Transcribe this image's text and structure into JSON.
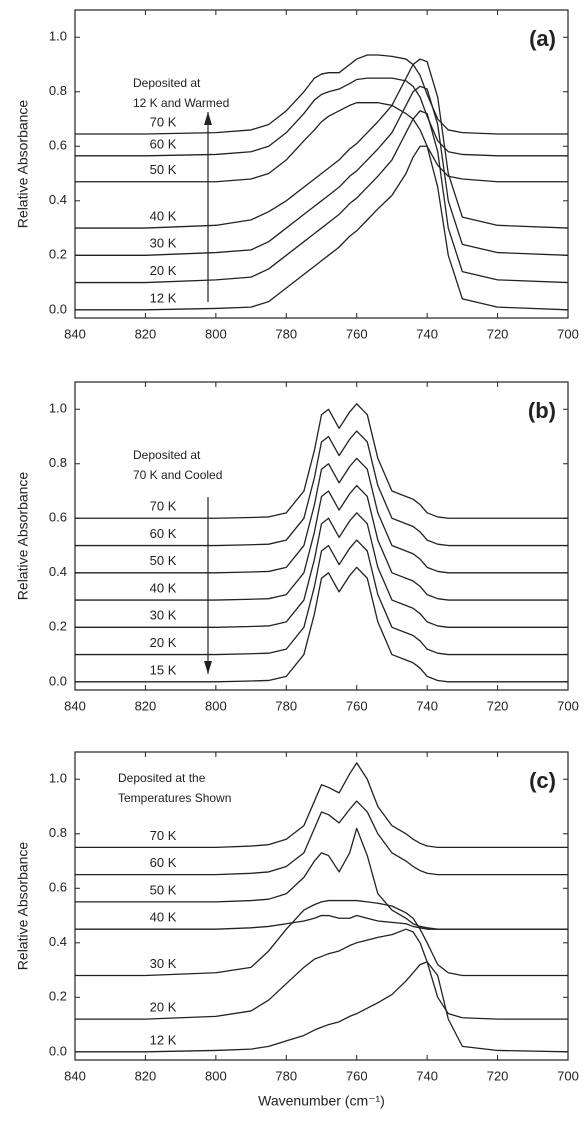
{
  "chart_data": [
    {
      "type": "line",
      "panel_label": "(a)",
      "ylabel": "Relative Absorbance",
      "annotation": [
        "Deposited  at",
        "12 K and Warmed"
      ],
      "xlim": [
        840,
        700
      ],
      "ylim": [
        -0.03,
        1.1
      ],
      "xticks": [
        840,
        820,
        800,
        780,
        760,
        740,
        720,
        700
      ],
      "yticks": [
        {
          "value": 0,
          "label": "0.0"
        },
        {
          "value": 0.2,
          "label": "0.2"
        },
        {
          "value": 0.4,
          "label": "0.4"
        },
        {
          "value": 0.6,
          "label": "0.6"
        },
        {
          "value": 0.8,
          "label": "0.8"
        },
        {
          "value": 1,
          "label": "1.0"
        }
      ],
      "x": [
        840,
        820,
        800,
        790,
        785,
        780,
        775,
        772,
        770,
        768,
        765,
        762,
        760,
        757,
        754,
        750,
        746,
        744,
        742,
        740,
        737,
        734,
        730,
        720,
        700
      ],
      "series": [
        {
          "name": "12 K",
          "color": "#222222",
          "values": [
            0,
            0,
            0.005,
            0.01,
            0.03,
            0.08,
            0.13,
            0.16,
            0.18,
            0.2,
            0.23,
            0.27,
            0.29,
            0.33,
            0.37,
            0.42,
            0.5,
            0.56,
            0.6,
            0.6,
            0.45,
            0.2,
            0.04,
            0.01,
            0
          ]
        },
        {
          "name": "20 K",
          "color": "#222222",
          "values": [
            0.1,
            0.1,
            0.11,
            0.12,
            0.15,
            0.2,
            0.25,
            0.28,
            0.3,
            0.32,
            0.35,
            0.39,
            0.41,
            0.45,
            0.49,
            0.55,
            0.65,
            0.7,
            0.73,
            0.72,
            0.58,
            0.3,
            0.14,
            0.11,
            0.1
          ]
        },
        {
          "name": "30 K",
          "color": "#222222",
          "values": [
            0.2,
            0.2,
            0.21,
            0.22,
            0.25,
            0.3,
            0.35,
            0.38,
            0.4,
            0.42,
            0.45,
            0.49,
            0.51,
            0.55,
            0.59,
            0.65,
            0.75,
            0.8,
            0.82,
            0.81,
            0.68,
            0.4,
            0.24,
            0.21,
            0.2
          ]
        },
        {
          "name": "40 K",
          "color": "#222222",
          "values": [
            0.3,
            0.3,
            0.31,
            0.33,
            0.36,
            0.4,
            0.45,
            0.48,
            0.5,
            0.52,
            0.55,
            0.59,
            0.61,
            0.65,
            0.69,
            0.75,
            0.85,
            0.9,
            0.92,
            0.91,
            0.78,
            0.5,
            0.34,
            0.31,
            0.3
          ]
        },
        {
          "name": "50 K",
          "color": "#222222",
          "values": [
            0.47,
            0.47,
            0.47,
            0.48,
            0.5,
            0.55,
            0.62,
            0.66,
            0.69,
            0.71,
            0.73,
            0.75,
            0.76,
            0.76,
            0.76,
            0.75,
            0.72,
            0.7,
            0.66,
            0.6,
            0.53,
            0.49,
            0.48,
            0.47,
            0.47
          ]
        },
        {
          "name": "60 K",
          "color": "#222222",
          "values": [
            0.565,
            0.565,
            0.57,
            0.58,
            0.6,
            0.65,
            0.72,
            0.77,
            0.79,
            0.8,
            0.81,
            0.83,
            0.845,
            0.85,
            0.85,
            0.85,
            0.84,
            0.82,
            0.78,
            0.71,
            0.62,
            0.58,
            0.57,
            0.565,
            0.565
          ]
        },
        {
          "name": "70 K",
          "color": "#222222",
          "values": [
            0.645,
            0.645,
            0.65,
            0.66,
            0.68,
            0.73,
            0.8,
            0.85,
            0.865,
            0.87,
            0.87,
            0.9,
            0.92,
            0.935,
            0.935,
            0.93,
            0.92,
            0.9,
            0.86,
            0.79,
            0.7,
            0.66,
            0.65,
            0.645,
            0.645
          ]
        }
      ]
    },
    {
      "type": "line",
      "panel_label": "(b)",
      "ylabel": "Relative Absorbance",
      "annotation": [
        "Deposited  at",
        "70 K and Cooled"
      ],
      "xlim": [
        840,
        700
      ],
      "ylim": [
        -0.03,
        1.1
      ],
      "xticks": [
        840,
        820,
        800,
        780,
        760,
        740,
        720,
        700
      ],
      "yticks": [
        {
          "value": 0,
          "label": "0.0"
        },
        {
          "value": 0.2,
          "label": "0.2"
        },
        {
          "value": 0.4,
          "label": "0.4"
        },
        {
          "value": 0.6,
          "label": "0.6"
        },
        {
          "value": 0.8,
          "label": "0.8"
        },
        {
          "value": 1,
          "label": "1.0"
        }
      ],
      "x": [
        840,
        820,
        800,
        790,
        785,
        780,
        775,
        772,
        770,
        768,
        765,
        762,
        760,
        757,
        754,
        750,
        746,
        744,
        742,
        740,
        737,
        734,
        730,
        720,
        700
      ],
      "series": [
        {
          "name": "15 K",
          "color": "#222222",
          "values": [
            0,
            0,
            0,
            0.003,
            0.005,
            0.02,
            0.1,
            0.25,
            0.38,
            0.4,
            0.33,
            0.39,
            0.42,
            0.38,
            0.22,
            0.1,
            0.08,
            0.07,
            0.05,
            0.02,
            0.005,
            0,
            0,
            0,
            0
          ]
        },
        {
          "name": "20 K",
          "color": "#222222",
          "values": [
            0.1,
            0.1,
            0.1,
            0.103,
            0.105,
            0.12,
            0.2,
            0.35,
            0.48,
            0.5,
            0.43,
            0.49,
            0.52,
            0.48,
            0.32,
            0.2,
            0.18,
            0.17,
            0.15,
            0.12,
            0.105,
            0.1,
            0.1,
            0.1,
            0.1
          ]
        },
        {
          "name": "30 K",
          "color": "#222222",
          "values": [
            0.2,
            0.2,
            0.2,
            0.203,
            0.205,
            0.22,
            0.3,
            0.45,
            0.58,
            0.6,
            0.53,
            0.59,
            0.62,
            0.58,
            0.42,
            0.3,
            0.28,
            0.27,
            0.25,
            0.22,
            0.205,
            0.2,
            0.2,
            0.2,
            0.2
          ]
        },
        {
          "name": "40 K",
          "color": "#222222",
          "values": [
            0.3,
            0.3,
            0.3,
            0.303,
            0.305,
            0.32,
            0.4,
            0.55,
            0.68,
            0.7,
            0.63,
            0.69,
            0.72,
            0.68,
            0.52,
            0.4,
            0.38,
            0.37,
            0.35,
            0.32,
            0.305,
            0.3,
            0.3,
            0.3,
            0.3
          ]
        },
        {
          "name": "50 K",
          "color": "#222222",
          "values": [
            0.4,
            0.4,
            0.4,
            0.403,
            0.405,
            0.42,
            0.5,
            0.65,
            0.78,
            0.8,
            0.73,
            0.79,
            0.82,
            0.78,
            0.62,
            0.5,
            0.48,
            0.47,
            0.45,
            0.42,
            0.405,
            0.4,
            0.4,
            0.4,
            0.4
          ]
        },
        {
          "name": "60 K",
          "color": "#222222",
          "values": [
            0.5,
            0.5,
            0.5,
            0.503,
            0.505,
            0.52,
            0.6,
            0.75,
            0.88,
            0.9,
            0.83,
            0.89,
            0.92,
            0.88,
            0.72,
            0.6,
            0.58,
            0.57,
            0.55,
            0.52,
            0.505,
            0.5,
            0.5,
            0.5,
            0.5
          ]
        },
        {
          "name": "70 K",
          "color": "#222222",
          "values": [
            0.6,
            0.6,
            0.6,
            0.603,
            0.605,
            0.62,
            0.7,
            0.85,
            0.98,
            1,
            0.93,
            0.99,
            1.02,
            0.98,
            0.82,
            0.7,
            0.68,
            0.67,
            0.65,
            0.62,
            0.605,
            0.6,
            0.6,
            0.6,
            0.6
          ]
        }
      ]
    },
    {
      "type": "line",
      "panel_label": "(c)",
      "ylabel": "Relative Absorbance",
      "xlabel": "Wavenumber (cm⁻¹)",
      "annotation": [
        "Deposited at the",
        "Temperatures Shown"
      ],
      "xlim": [
        840,
        700
      ],
      "ylim": [
        -0.03,
        1.1
      ],
      "xticks": [
        840,
        820,
        800,
        780,
        760,
        740,
        720,
        700
      ],
      "yticks": [
        {
          "value": 0,
          "label": "0.0"
        },
        {
          "value": 0.2,
          "label": "0.2"
        },
        {
          "value": 0.4,
          "label": "0.4"
        },
        {
          "value": 0.6,
          "label": "0.6"
        },
        {
          "value": 0.8,
          "label": "0.8"
        },
        {
          "value": 1,
          "label": "1.0"
        }
      ],
      "x": [
        840,
        820,
        800,
        790,
        785,
        780,
        775,
        772,
        770,
        768,
        765,
        762,
        760,
        757,
        754,
        750,
        746,
        744,
        742,
        740,
        737,
        734,
        730,
        720,
        700
      ],
      "series": [
        {
          "name": "12 K",
          "color": "#222222",
          "values": [
            0,
            0,
            0.005,
            0.01,
            0.02,
            0.04,
            0.06,
            0.08,
            0.09,
            0.1,
            0.11,
            0.13,
            0.14,
            0.16,
            0.18,
            0.21,
            0.26,
            0.29,
            0.32,
            0.33,
            0.28,
            0.12,
            0.02,
            0.005,
            0
          ]
        },
        {
          "name": "20 K",
          "color": "#222222",
          "values": [
            0.12,
            0.12,
            0.13,
            0.15,
            0.19,
            0.25,
            0.31,
            0.34,
            0.35,
            0.36,
            0.37,
            0.39,
            0.4,
            0.41,
            0.42,
            0.43,
            0.45,
            0.44,
            0.4,
            0.33,
            0.2,
            0.14,
            0.125,
            0.12,
            0.12
          ]
        },
        {
          "name": "30 K",
          "color": "#222222",
          "values": [
            0.28,
            0.28,
            0.29,
            0.31,
            0.37,
            0.45,
            0.52,
            0.54,
            0.55,
            0.555,
            0.555,
            0.555,
            0.555,
            0.55,
            0.545,
            0.535,
            0.51,
            0.49,
            0.45,
            0.4,
            0.32,
            0.29,
            0.28,
            0.28,
            0.28
          ]
        },
        {
          "name": "40 K",
          "color": "#222222",
          "values": [
            0.45,
            0.45,
            0.45,
            0.455,
            0.46,
            0.47,
            0.48,
            0.49,
            0.5,
            0.5,
            0.49,
            0.49,
            0.5,
            0.49,
            0.48,
            0.475,
            0.47,
            0.46,
            0.455,
            0.45,
            0.45,
            0.45,
            0.45,
            0.45,
            0.45
          ]
        },
        {
          "name": "50 K",
          "color": "#222222",
          "values": [
            0.55,
            0.55,
            0.55,
            0.555,
            0.56,
            0.58,
            0.64,
            0.7,
            0.73,
            0.72,
            0.66,
            0.73,
            0.82,
            0.72,
            0.58,
            0.52,
            0.49,
            0.47,
            0.46,
            0.455,
            0.45,
            0.45,
            0.45,
            0.45,
            0.45
          ]
        },
        {
          "name": "60 K",
          "color": "#222222",
          "values": [
            0.65,
            0.65,
            0.65,
            0.655,
            0.66,
            0.68,
            0.73,
            0.82,
            0.88,
            0.87,
            0.84,
            0.89,
            0.92,
            0.88,
            0.8,
            0.73,
            0.7,
            0.68,
            0.665,
            0.655,
            0.65,
            0.65,
            0.65,
            0.65,
            0.65
          ]
        },
        {
          "name": "70 K",
          "color": "#222222",
          "values": [
            0.75,
            0.75,
            0.75,
            0.755,
            0.76,
            0.78,
            0.83,
            0.92,
            0.98,
            0.97,
            0.95,
            1.02,
            1.06,
            1,
            0.9,
            0.83,
            0.8,
            0.78,
            0.765,
            0.755,
            0.75,
            0.75,
            0.75,
            0.75,
            0.75
          ]
        }
      ]
    }
  ]
}
